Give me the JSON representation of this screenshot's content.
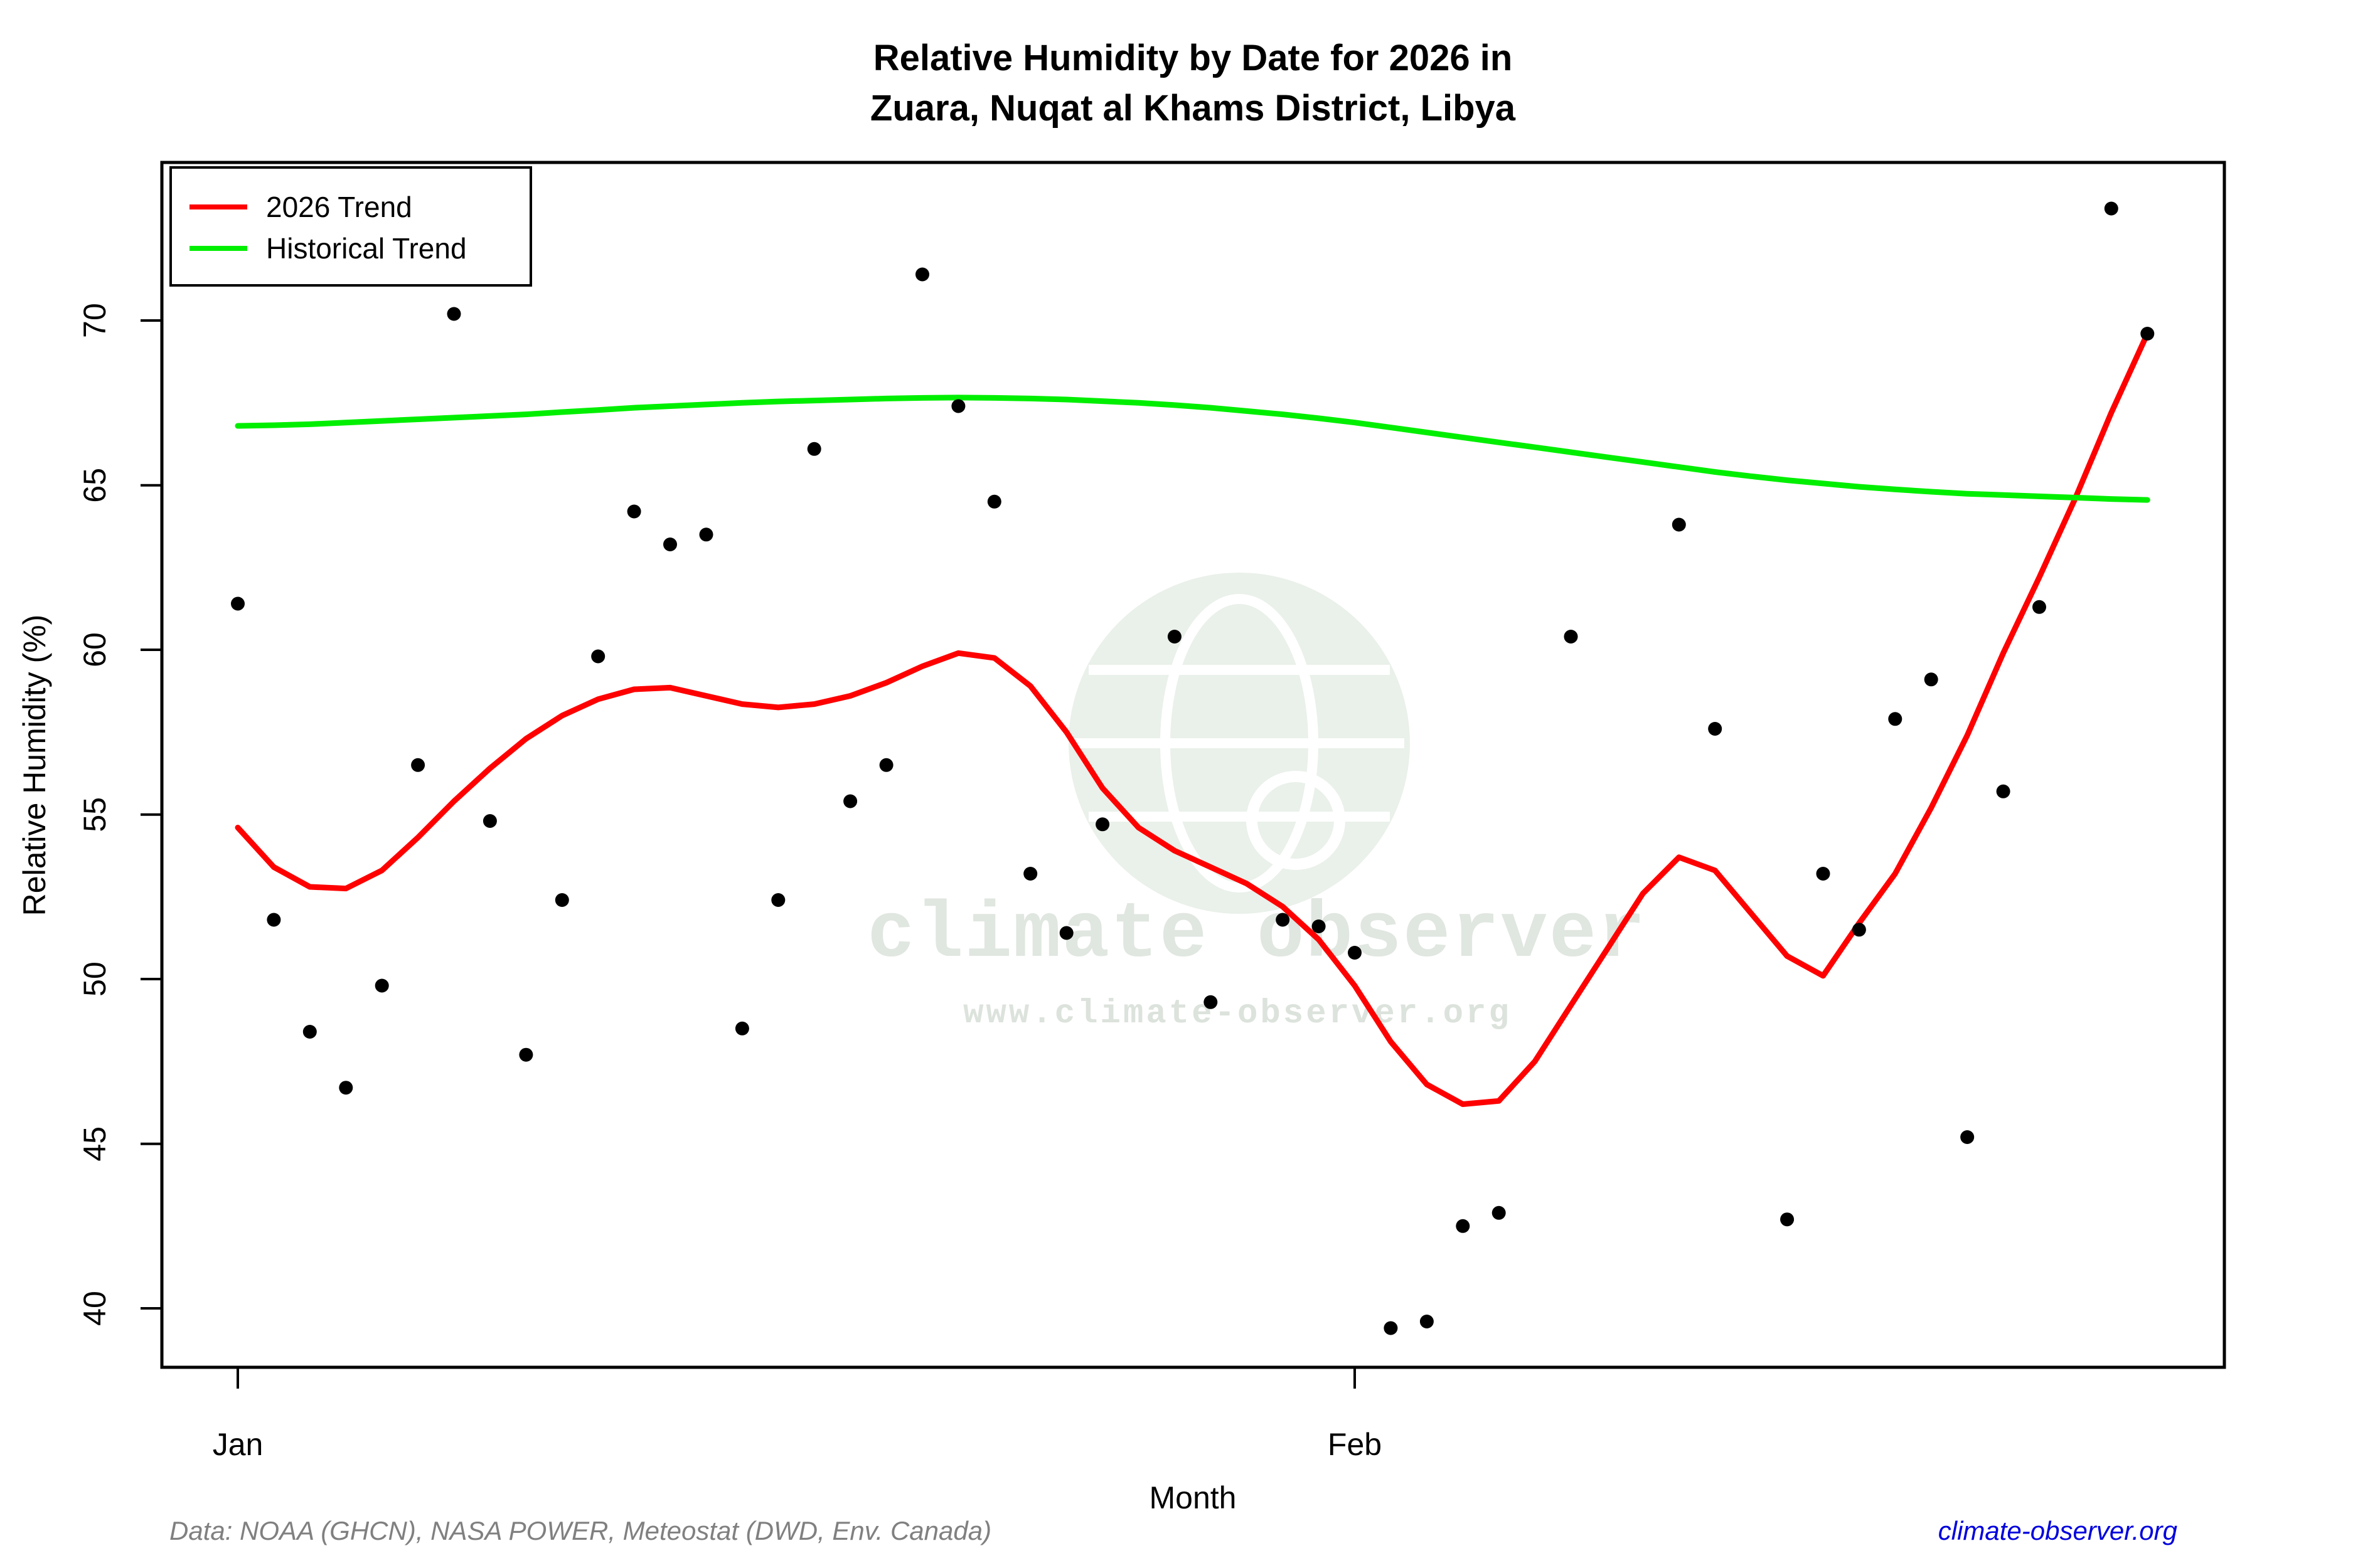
{
  "title": {
    "line1": "Relative Humidity by Date for 2026 in",
    "line2": "Zuara, Nuqat al Khams District, Libya"
  },
  "legend": {
    "items": [
      {
        "label": "2026 Trend",
        "color": "#ff0000"
      },
      {
        "label": "Historical Trend",
        "color": "#00ee00"
      }
    ]
  },
  "axes": {
    "y_label": "Relative Humidity (%)",
    "x_label": "Month",
    "y_ticks": [
      40,
      45,
      50,
      55,
      60,
      65,
      70
    ]
  },
  "watermark": {
    "line1": "climate observer",
    "line2": "www.climate-observer.org"
  },
  "footer": {
    "source": "Data: NOAA (GHCN), NASA POWER, Meteostat (DWD, Env. Canada)",
    "site": "climate-observer.org"
  },
  "chart_data": {
    "type": "scatter",
    "title": "Relative Humidity by Date for 2026 in Zuara, Nuqat al Khams District, Libya",
    "xlabel": "Month",
    "ylabel": "Relative Humidity (%)",
    "ylim": [
      38.2,
      74.8
    ],
    "x_axis": {
      "domain_days": [
        1,
        54
      ],
      "tick_days": [
        {
          "label": "Jan",
          "day": 1
        },
        {
          "label": "Feb",
          "day": 32
        }
      ]
    },
    "grid": false,
    "legend_position": "top-left",
    "point_color": "#000000",
    "points_day_value": [
      [
        1,
        61.4
      ],
      [
        2,
        51.8
      ],
      [
        3,
        48.4
      ],
      [
        4,
        46.7
      ],
      [
        5,
        49.8
      ],
      [
        6,
        56.5
      ],
      [
        7,
        70.2
      ],
      [
        8,
        54.8
      ],
      [
        9,
        47.7
      ],
      [
        10,
        52.4
      ],
      [
        11,
        59.8
      ],
      [
        12,
        64.2
      ],
      [
        13,
        63.2
      ],
      [
        14,
        63.5
      ],
      [
        15,
        48.5
      ],
      [
        16,
        52.4
      ],
      [
        17,
        66.1
      ],
      [
        18,
        55.4
      ],
      [
        19,
        56.5
      ],
      [
        20,
        71.4
      ],
      [
        21,
        67.4
      ],
      [
        22,
        64.5
      ],
      [
        23,
        53.2
      ],
      [
        24,
        51.4
      ],
      [
        25,
        54.7
      ],
      [
        27,
        60.4
      ],
      [
        28,
        49.3
      ],
      [
        30,
        51.8
      ],
      [
        31,
        51.6
      ],
      [
        32,
        50.8
      ],
      [
        33,
        39.4
      ],
      [
        34,
        39.6
      ],
      [
        35,
        42.5
      ],
      [
        36,
        42.9
      ],
      [
        38,
        60.4
      ],
      [
        41,
        63.8
      ],
      [
        42,
        57.6
      ],
      [
        44,
        42.7
      ],
      [
        45,
        53.2
      ],
      [
        46,
        51.5
      ],
      [
        47,
        57.9
      ],
      [
        48,
        59.1
      ],
      [
        49,
        45.2
      ],
      [
        50,
        55.7
      ],
      [
        51,
        61.3
      ],
      [
        53,
        73.4
      ],
      [
        54,
        69.6
      ]
    ],
    "series": [
      {
        "name": "2026 Trend",
        "color": "#ff0000",
        "start_day": 1,
        "values": [
          54.6,
          53.4,
          52.8,
          52.75,
          53.3,
          54.3,
          55.4,
          56.4,
          57.3,
          58.0,
          58.5,
          58.8,
          58.85,
          58.6,
          58.35,
          58.25,
          58.35,
          58.6,
          59.0,
          59.5,
          59.9,
          59.75,
          58.9,
          57.5,
          55.8,
          54.6,
          53.9,
          53.4,
          52.9,
          52.2,
          51.2,
          49.8,
          48.1,
          46.8,
          46.2,
          46.3,
          47.5,
          49.2,
          50.9,
          52.6,
          53.7,
          53.3,
          52.0,
          50.7,
          50.1,
          51.7,
          53.2,
          55.2,
          57.4,
          59.9,
          62.2,
          64.6,
          67.2,
          69.6
        ]
      },
      {
        "name": "Historical Trend",
        "color": "#00ee00",
        "start_day": 1,
        "values": [
          66.8,
          66.82,
          66.85,
          66.9,
          66.95,
          67.0,
          67.05,
          67.1,
          67.15,
          67.22,
          67.28,
          67.35,
          67.4,
          67.45,
          67.5,
          67.54,
          67.57,
          67.6,
          67.63,
          67.65,
          67.66,
          67.65,
          67.63,
          67.6,
          67.55,
          67.5,
          67.43,
          67.35,
          67.25,
          67.15,
          67.03,
          66.9,
          66.75,
          66.6,
          66.45,
          66.3,
          66.15,
          66.0,
          65.85,
          65.7,
          65.55,
          65.4,
          65.27,
          65.15,
          65.05,
          64.95,
          64.87,
          64.8,
          64.74,
          64.7,
          64.66,
          64.62,
          64.58,
          64.55
        ]
      }
    ]
  }
}
